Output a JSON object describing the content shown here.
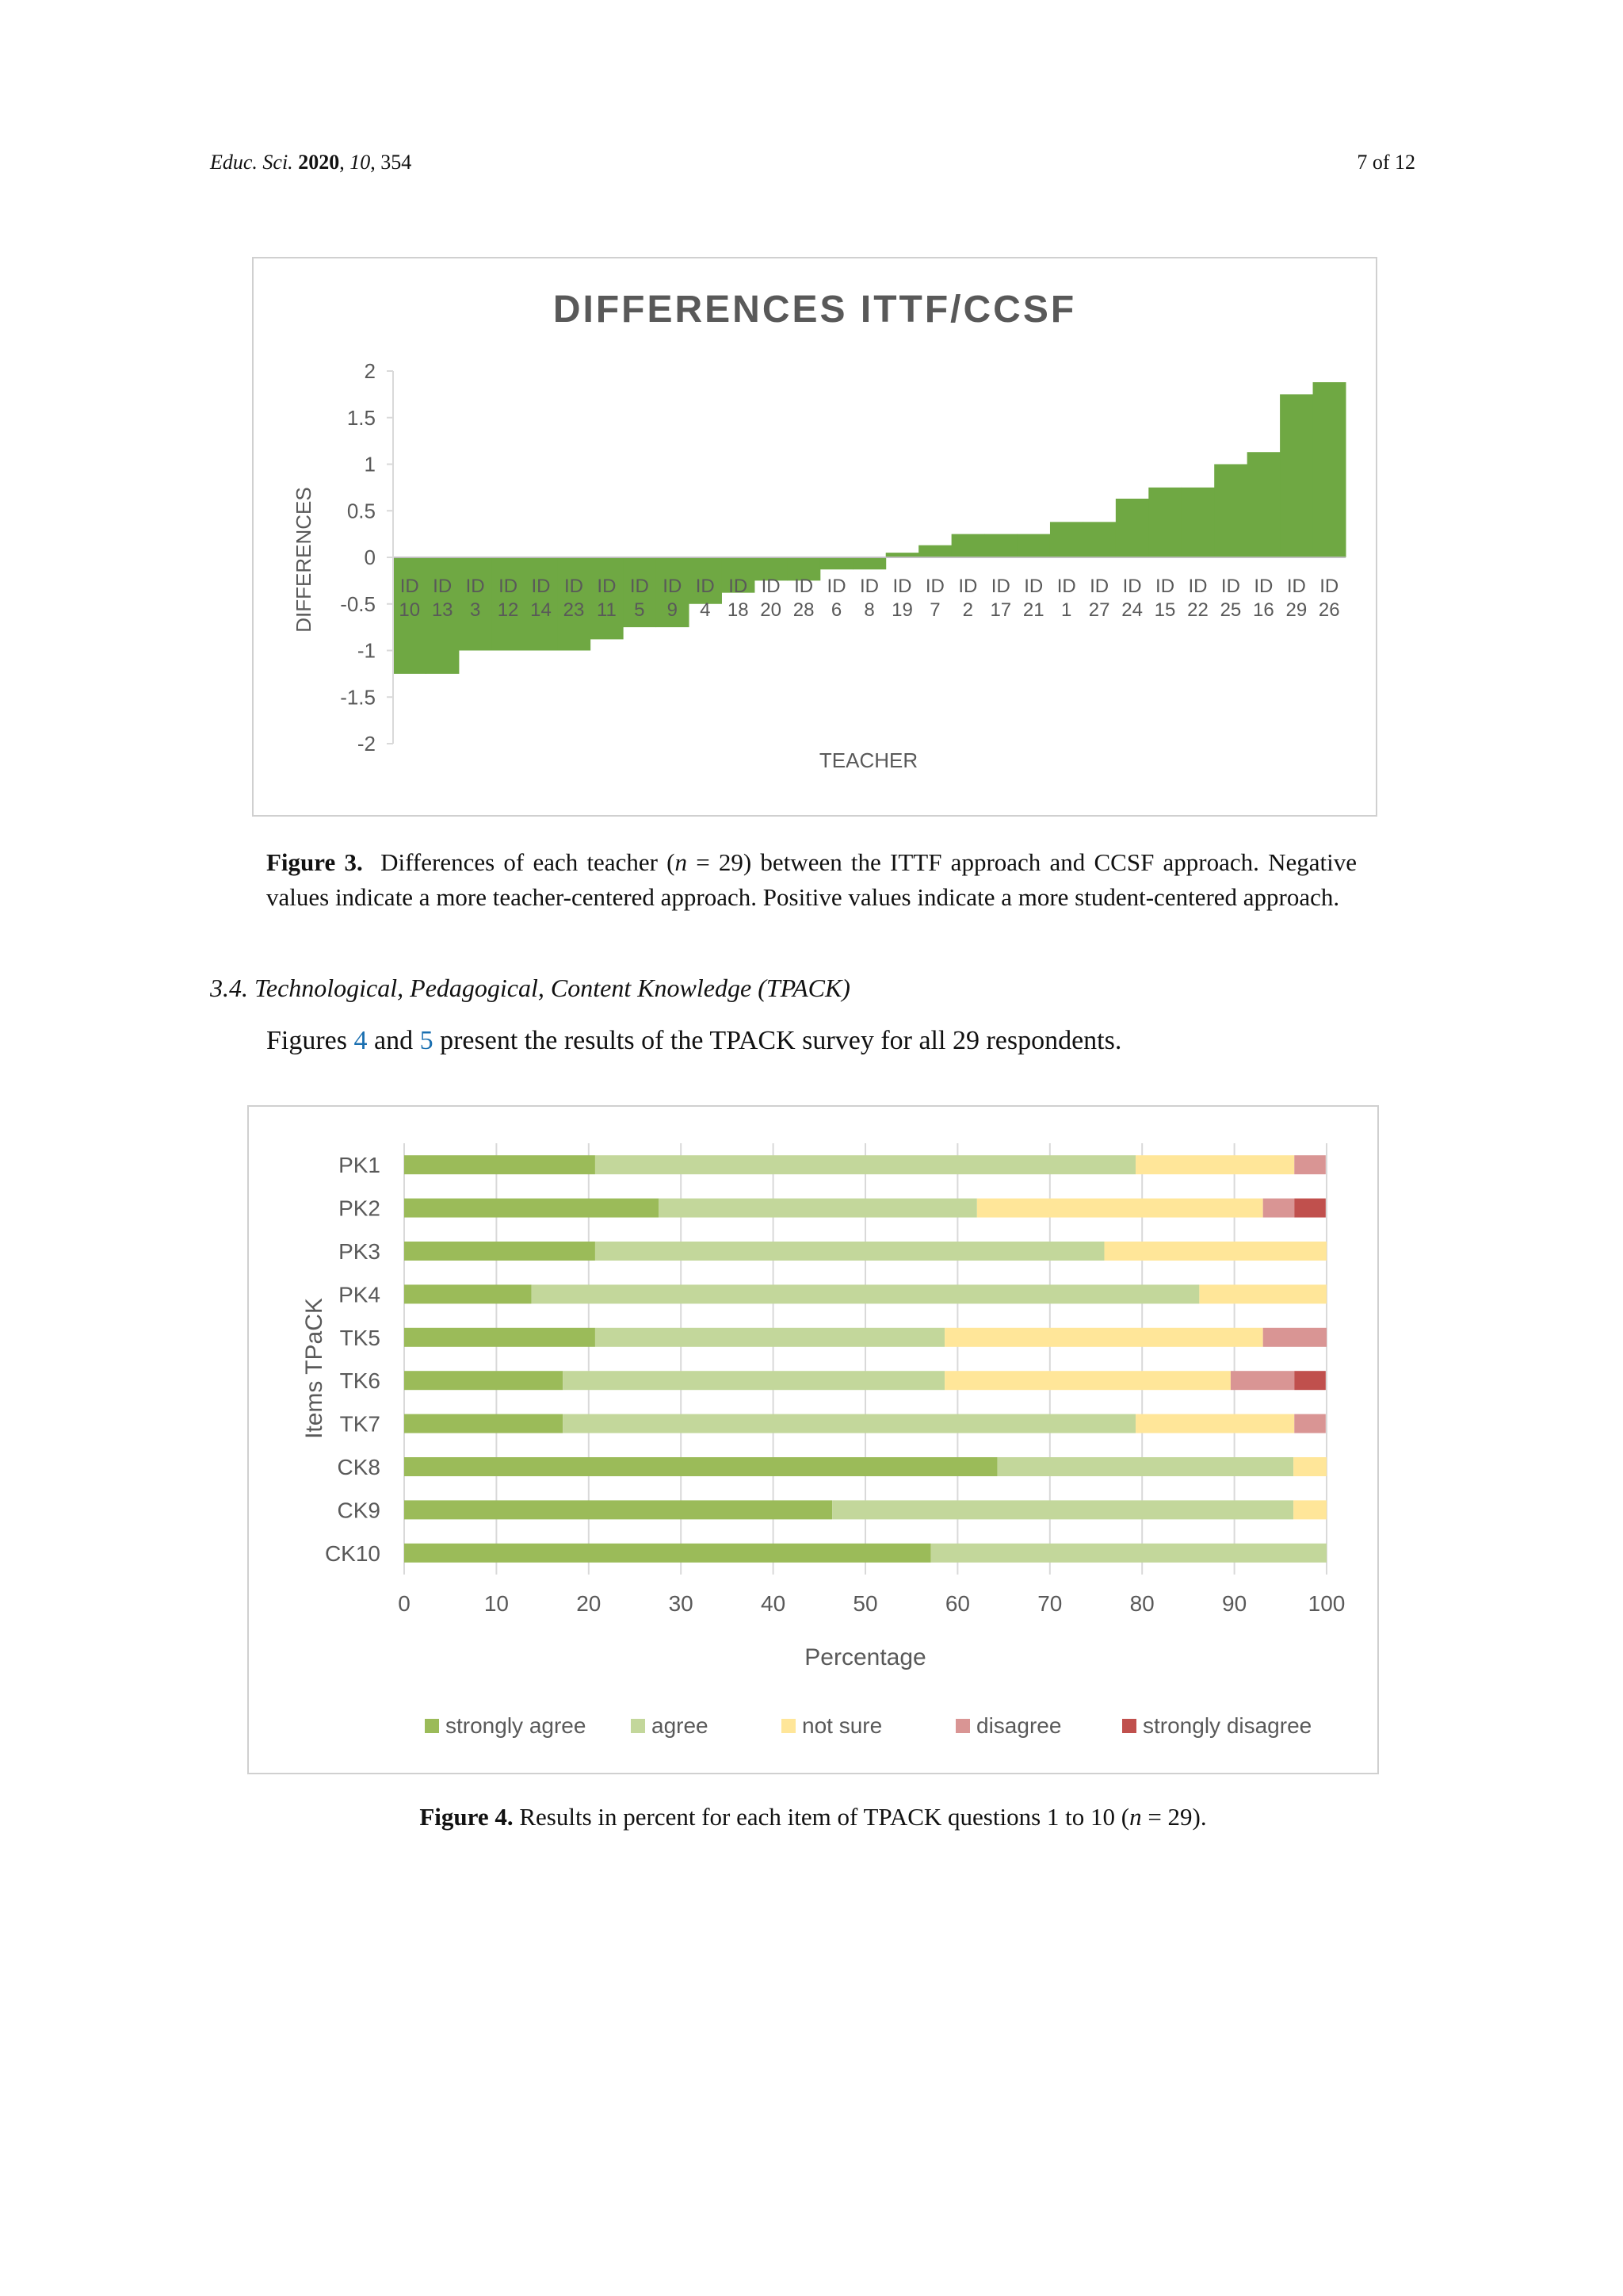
{
  "header": {
    "journal": "Educ. Sci.",
    "year": "2020",
    "volume": "10",
    "article": "354",
    "page_of": "7 of 12"
  },
  "figure3": {
    "caption_label": "Figure 3.",
    "caption_pre": "Differences of each teacher (",
    "caption_n": "n",
    "caption_post": " = 29) between the ITTF approach and CCSF approach. Negative values indicate a more teacher-centered approach. Positive values indicate a more student-centered approach."
  },
  "section": {
    "title": "3.4. Technological, Pedagogical, Content Knowledge (TPACK)"
  },
  "paragraph": {
    "pre": "Figures ",
    "ref1": "4",
    "mid": " and ",
    "ref2": "5",
    "post": " present the results of the TPACK survey for all 29 respondents."
  },
  "figure4": {
    "caption_label": "Figure 4.",
    "caption_pre": " Results in percent for each item of TPACK questions 1 to 10 (",
    "caption_n": "n",
    "caption_post": " = 29)."
  },
  "chart_data": [
    {
      "type": "bar",
      "title": "DIFFERENCES ITTF/CCSF",
      "xlabel": "TEACHER",
      "ylabel": "DIFFERENCES",
      "ylim": [
        -2,
        2
      ],
      "yticks": [
        "2",
        "1.5",
        "1",
        "0.5",
        "0",
        "-0.5",
        "-1",
        "-1.5",
        "-2"
      ],
      "grid": false,
      "color": "#6fa843",
      "categories": [
        "ID 10",
        "ID 13",
        "ID 3",
        "ID 12",
        "ID 14",
        "ID 23",
        "ID 11",
        "ID 5",
        "ID 9",
        "ID 4",
        "ID 18",
        "ID 20",
        "ID 28",
        "ID 6",
        "ID 8",
        "ID 19",
        "ID 7",
        "ID 2",
        "ID 17",
        "ID 21",
        "ID 1",
        "ID 27",
        "ID 24",
        "ID 15",
        "ID 22",
        "ID 25",
        "ID 16",
        "ID 29",
        "ID 26"
      ],
      "values": [
        -1.25,
        -1.25,
        -1.0,
        -1.0,
        -1.0,
        -1.0,
        -0.88,
        -0.75,
        -0.75,
        -0.5,
        -0.38,
        -0.25,
        -0.25,
        -0.13,
        -0.13,
        0.05,
        0.13,
        0.25,
        0.25,
        0.25,
        0.38,
        0.38,
        0.63,
        0.75,
        0.75,
        1.0,
        1.13,
        1.75,
        1.88
      ]
    },
    {
      "type": "bar",
      "orientation": "horizontal",
      "stacked": true,
      "xlabel": "Percentage",
      "ylabel": "Items TPaCK",
      "xlim": [
        0,
        100
      ],
      "xticks": [
        "0",
        "10",
        "20",
        "30",
        "40",
        "50",
        "60",
        "70",
        "80",
        "90",
        "100"
      ],
      "grid": true,
      "legend_position": "bottom",
      "categories": [
        "PK1",
        "PK2",
        "PK3",
        "PK4",
        "TK5",
        "TK6",
        "TK7",
        "CK8",
        "CK9",
        "CK10"
      ],
      "series": [
        {
          "name": "strongly agree",
          "color": "#9bbb59",
          "values": [
            20.7,
            27.6,
            20.7,
            13.8,
            20.7,
            17.2,
            17.2,
            64.3,
            46.4,
            57.1
          ]
        },
        {
          "name": "agree",
          "color": "#c3d79b",
          "values": [
            58.6,
            34.5,
            55.2,
            72.4,
            37.9,
            41.4,
            62.1,
            32.1,
            50.0,
            42.9
          ]
        },
        {
          "name": "not sure",
          "color": "#ffe699",
          "values": [
            17.2,
            31.0,
            24.1,
            13.8,
            34.5,
            31.0,
            17.2,
            3.6,
            3.6,
            0
          ]
        },
        {
          "name": "disagree",
          "color": "#d99594",
          "values": [
            3.4,
            3.4,
            0,
            0,
            6.9,
            6.9,
            3.4,
            0,
            0,
            0
          ]
        },
        {
          "name": "strongly disagree",
          "color": "#c0504d",
          "values": [
            0,
            3.4,
            0,
            0,
            0,
            3.4,
            0,
            0,
            0,
            0
          ]
        }
      ]
    }
  ]
}
